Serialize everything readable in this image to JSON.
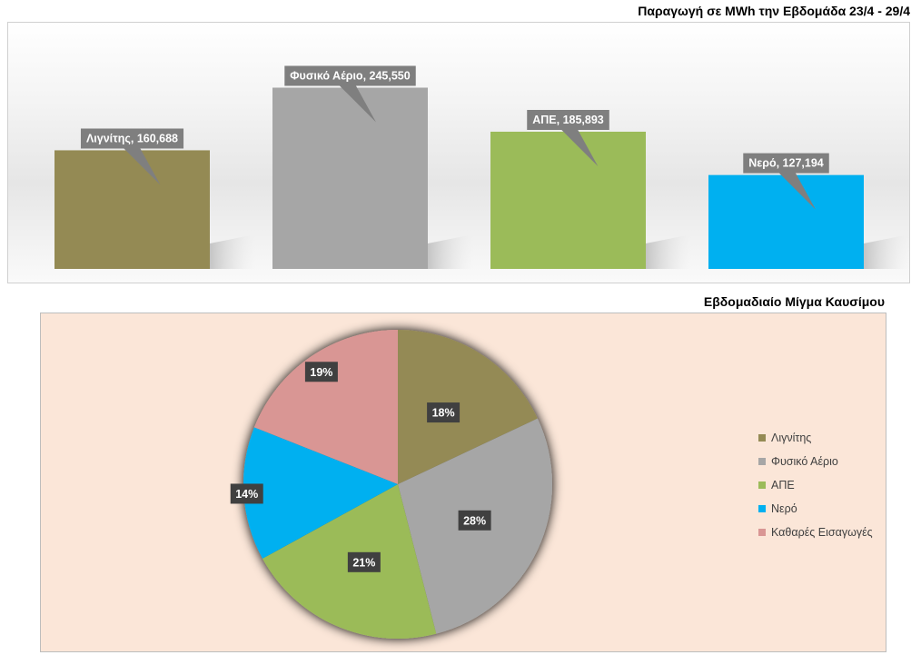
{
  "chart_data": [
    {
      "type": "bar",
      "title": "Παραγωγή σε MWh την Εβδομάδα 23/4 - 29/4",
      "categories": [
        "Λιγνίτης",
        "Φυσικό Αέριο",
        "ΑΠΕ",
        "Νερό"
      ],
      "values": [
        160688,
        245550,
        185893,
        127194
      ],
      "value_labels": [
        "160,688",
        "245,550",
        "185,893",
        "127,194"
      ],
      "colors": [
        "#948a54",
        "#a6a6a6",
        "#9bbb59",
        "#00b0f0"
      ],
      "ylim": [
        0,
        320000
      ],
      "grid": false,
      "legend": "none"
    },
    {
      "type": "pie",
      "title": "Εβδομαδιαίο Μίγμα Καυσίμου",
      "categories": [
        "Λιγνίτης",
        "Φυσικό Αέριο",
        "ΑΠΕ",
        "Νερό",
        "Καθαρές Εισαγωγές"
      ],
      "values": [
        18,
        28,
        21,
        14,
        19
      ],
      "value_labels": [
        "18%",
        "28%",
        "21%",
        "14%",
        "19%"
      ],
      "colors": [
        "#948a54",
        "#a6a6a6",
        "#9bbb59",
        "#00b0f0",
        "#d99694"
      ],
      "legend": "right"
    }
  ]
}
